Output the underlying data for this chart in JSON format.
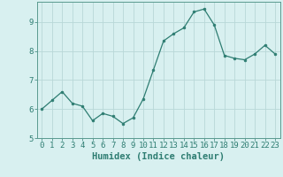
{
  "x": [
    0,
    1,
    2,
    3,
    4,
    5,
    6,
    7,
    8,
    9,
    10,
    11,
    12,
    13,
    14,
    15,
    16,
    17,
    18,
    19,
    20,
    21,
    22,
    23
  ],
  "y": [
    6.0,
    6.3,
    6.6,
    6.2,
    6.1,
    5.6,
    5.85,
    5.75,
    5.5,
    5.7,
    6.35,
    7.35,
    8.35,
    8.6,
    8.8,
    9.35,
    9.45,
    8.9,
    7.85,
    7.75,
    7.7,
    7.9,
    8.2,
    7.9
  ],
  "line_color": "#2e7d72",
  "marker": "o",
  "marker_size": 2.0,
  "bg_color": "#d8f0f0",
  "grid_color": "#b8d8d8",
  "xlabel": "Humidex (Indice chaleur)",
  "xlim": [
    -0.5,
    23.5
  ],
  "ylim": [
    5.0,
    9.7
  ],
  "yticks": [
    5,
    6,
    7,
    8,
    9
  ],
  "xticks": [
    0,
    1,
    2,
    3,
    4,
    5,
    6,
    7,
    8,
    9,
    10,
    11,
    12,
    13,
    14,
    15,
    16,
    17,
    18,
    19,
    20,
    21,
    22,
    23
  ],
  "tick_fontsize": 6.5,
  "xlabel_fontsize": 7.5,
  "axis_color": "#2e7d72",
  "spine_color": "#5a9a90"
}
